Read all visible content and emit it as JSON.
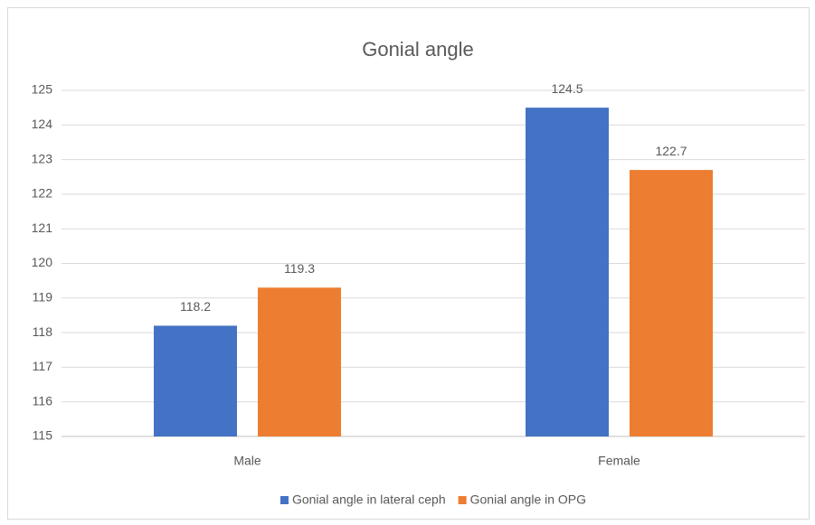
{
  "chart_data": {
    "type": "bar",
    "title": "Gonial angle",
    "categories": [
      "Male",
      "Female"
    ],
    "series": [
      {
        "name": "Gonial angle in lateral ceph",
        "color": "#4472c4",
        "values": [
          118.2,
          124.5
        ]
      },
      {
        "name": "Gonial angle in OPG",
        "color": "#ed7d31",
        "values": [
          119.3,
          122.7
        ]
      }
    ],
    "ylim": [
      115,
      125
    ],
    "yticks": [
      115,
      116,
      117,
      118,
      119,
      120,
      121,
      122,
      123,
      124,
      125
    ],
    "grid": true,
    "legend": "bottom"
  }
}
